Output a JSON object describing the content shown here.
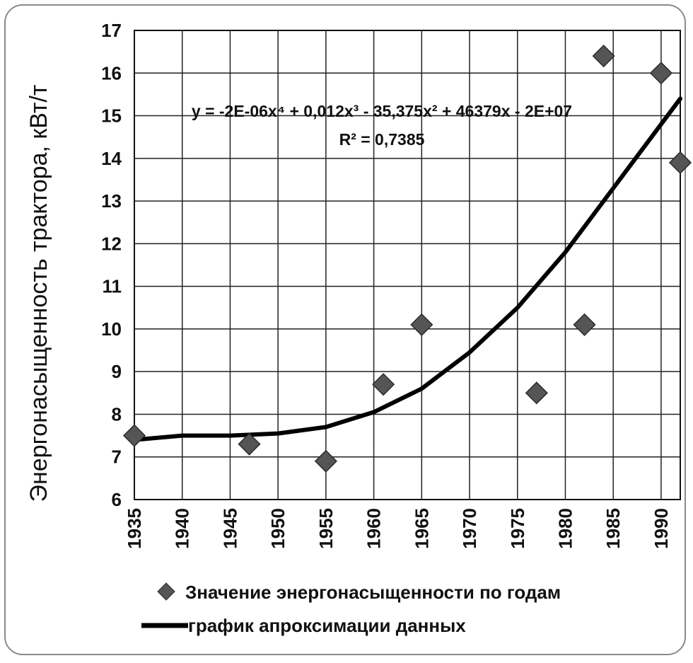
{
  "chart_data": {
    "type": "scatter",
    "ylabel": "Энергонасыщенность трактора, кВт/т",
    "xlabel": "",
    "xlim": [
      1935,
      1992
    ],
    "ylim": [
      6,
      17
    ],
    "xticks": [
      "1935",
      "1940",
      "1945",
      "1950",
      "1955",
      "1960",
      "1965",
      "1970",
      "1975",
      "1980",
      "1985",
      "1990"
    ],
    "yticks": [
      "6",
      "7",
      "8",
      "9",
      "10",
      "11",
      "12",
      "13",
      "14",
      "15",
      "16",
      "17"
    ],
    "grid": true,
    "legend_position": "bottom",
    "series": [
      {
        "name": "Значение энергонасыщенности по годам",
        "kind": "scatter",
        "marker": "diamond",
        "color": "#555555",
        "x": [
          1935,
          1947,
          1955,
          1961,
          1965,
          1977,
          1982,
          1984,
          1990,
          1992
        ],
        "y": [
          7.5,
          7.3,
          6.9,
          8.7,
          10.1,
          8.5,
          10.1,
          16.4,
          16.0,
          13.9
        ]
      },
      {
        "name": "график апроксимации данных",
        "kind": "line",
        "color": "#000000",
        "x": [
          1935,
          1940,
          1945,
          1950,
          1955,
          1960,
          1965,
          1970,
          1975,
          1980,
          1985,
          1990,
          1992
        ],
        "y": [
          7.4,
          7.5,
          7.5,
          7.55,
          7.7,
          8.05,
          8.6,
          9.45,
          10.5,
          11.8,
          13.3,
          14.8,
          15.4
        ]
      }
    ],
    "annotations": {
      "equation": "y = -2E-06x⁴ + 0,012x³ - 35,375x² + 46379x - 2E+07",
      "r_squared": "R² = 0,7385"
    }
  }
}
